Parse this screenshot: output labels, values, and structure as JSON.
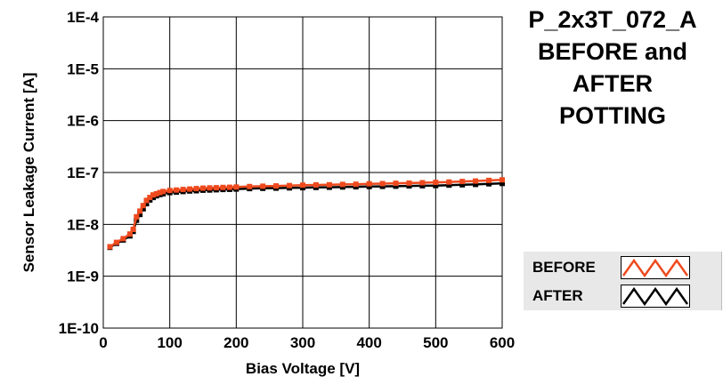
{
  "title_lines": [
    "P_2x3T_072_A",
    "BEFORE and",
    "AFTER",
    "POTTING"
  ],
  "legend": {
    "before": {
      "label": "BEFORE",
      "color": "#ee4a1e"
    },
    "after": {
      "label": "AFTER",
      "color": "#000000"
    }
  },
  "chart_data": {
    "type": "line",
    "title": "P_2x3T_072_A BEFORE and AFTER POTTING",
    "xlabel": "Bias Voltage [V]",
    "ylabel": "Sensor Leakage Current [A]",
    "xlim": [
      0,
      600
    ],
    "ylim": [
      1e-10,
      0.0001
    ],
    "yscale": "log",
    "grid": true,
    "legend_position": "bottom-right",
    "x_ticks": [
      "0",
      "100",
      "200",
      "300",
      "400",
      "500",
      "600"
    ],
    "y_ticks": [
      "1E-10",
      "1E-9",
      "1E-8",
      "1E-7",
      "1E-6",
      "1E-5",
      "1E-4"
    ],
    "series": [
      {
        "name": "BEFORE",
        "color": "#ee4a1e",
        "x": [
          10,
          20,
          30,
          40,
          45,
          50,
          55,
          60,
          65,
          70,
          75,
          80,
          85,
          90,
          100,
          110,
          120,
          130,
          140,
          150,
          160,
          170,
          180,
          190,
          200,
          220,
          240,
          260,
          280,
          300,
          320,
          340,
          360,
          380,
          400,
          420,
          440,
          460,
          480,
          500,
          520,
          540,
          560,
          580,
          600
        ],
        "y": [
          3.7e-09,
          4.5e-09,
          5.3e-09,
          6.5e-09,
          8e-09,
          1.4e-08,
          1.8e-08,
          2.3e-08,
          2.9e-08,
          3.3e-08,
          3.7e-08,
          3.9e-08,
          4.1e-08,
          4.3e-08,
          4.5e-08,
          4.6e-08,
          4.7e-08,
          4.8e-08,
          4.9e-08,
          5e-08,
          5.05e-08,
          5.1e-08,
          5.15e-08,
          5.2e-08,
          5.25e-08,
          5.35e-08,
          5.45e-08,
          5.5e-08,
          5.6e-08,
          5.7e-08,
          5.75e-08,
          5.8e-08,
          5.9e-08,
          5.95e-08,
          6.05e-08,
          6.1e-08,
          6.2e-08,
          6.25e-08,
          6.35e-08,
          6.45e-08,
          6.55e-08,
          6.7e-08,
          6.85e-08,
          7.05e-08,
          7.2e-08
        ]
      },
      {
        "name": "AFTER",
        "color": "#000000",
        "x": [
          10,
          20,
          30,
          40,
          45,
          50,
          55,
          60,
          65,
          70,
          75,
          80,
          85,
          90,
          100,
          110,
          120,
          130,
          140,
          150,
          160,
          170,
          180,
          190,
          200,
          220,
          240,
          260,
          280,
          300,
          320,
          340,
          360,
          380,
          400,
          420,
          440,
          460,
          480,
          500,
          520,
          540,
          560,
          580,
          600
        ],
        "y": [
          3.6e-09,
          4.3e-09,
          5e-09,
          6e-09,
          7.3e-09,
          1.2e-08,
          1.55e-08,
          2e-08,
          2.5e-08,
          2.95e-08,
          3.3e-08,
          3.55e-08,
          3.75e-08,
          3.9e-08,
          4.1e-08,
          4.2e-08,
          4.3e-08,
          4.4e-08,
          4.45e-08,
          4.55e-08,
          4.6e-08,
          4.65e-08,
          4.7e-08,
          4.75e-08,
          4.8e-08,
          4.9e-08,
          4.95e-08,
          5e-08,
          5.05e-08,
          5.1e-08,
          5.15e-08,
          5.2e-08,
          5.25e-08,
          5.3e-08,
          5.35e-08,
          5.4e-08,
          5.45e-08,
          5.5e-08,
          5.55e-08,
          5.6e-08,
          5.7e-08,
          5.8e-08,
          5.9e-08,
          6.05e-08,
          6.15e-08
        ]
      }
    ]
  }
}
